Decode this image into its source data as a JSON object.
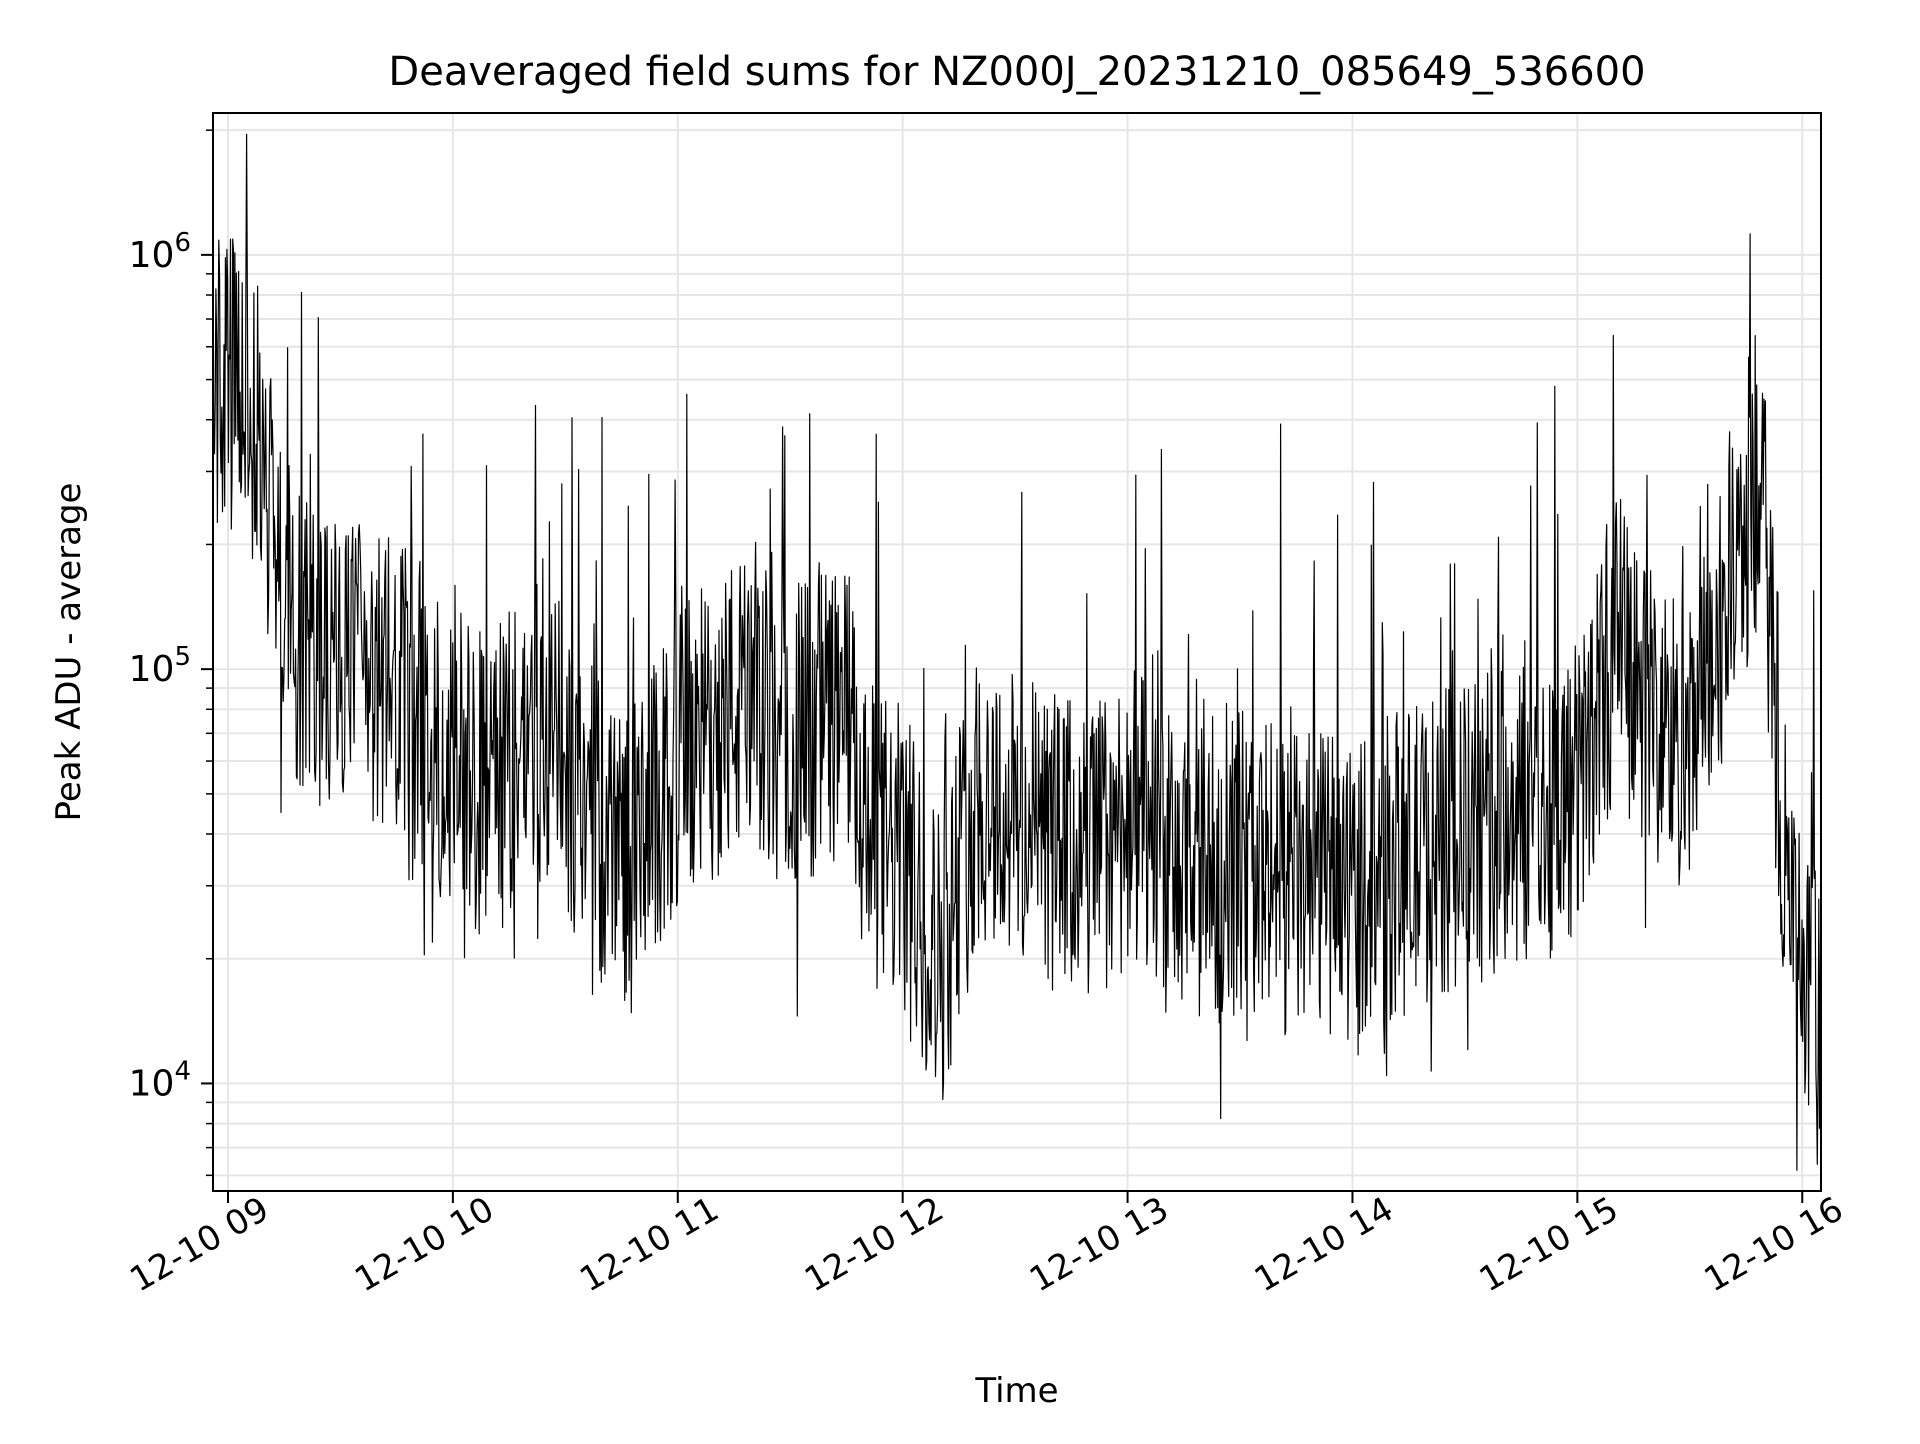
{
  "chart_data": {
    "type": "line",
    "title": "Deaveraged field sums for NZ000J_20231210_085649_536600",
    "xlabel": "Time",
    "ylabel": "Peak ADU - average",
    "yscale": "log",
    "ylim": [
      5500,
      2200000
    ],
    "xlim": [
      "2023-12-10 08:56",
      "2023-12-10 16:05"
    ],
    "grid": true,
    "line_color": "#000000",
    "grid_color": "#e6e6e6",
    "x_ticks": [
      {
        "t": "2023-12-10 09:00",
        "label": "12-10 09"
      },
      {
        "t": "2023-12-10 10:00",
        "label": "12-10 10"
      },
      {
        "t": "2023-12-10 11:00",
        "label": "12-10 11"
      },
      {
        "t": "2023-12-10 12:00",
        "label": "12-10 12"
      },
      {
        "t": "2023-12-10 13:00",
        "label": "12-10 13"
      },
      {
        "t": "2023-12-10 14:00",
        "label": "12-10 14"
      },
      {
        "t": "2023-12-10 15:00",
        "label": "12-10 15"
      },
      {
        "t": "2023-12-10 16:00",
        "label": "12-10 16"
      }
    ],
    "y_ticks": [
      {
        "value": 10000,
        "base": "10",
        "exp": "4"
      },
      {
        "value": 100000,
        "base": "10",
        "exp": "5"
      },
      {
        "value": 1000000,
        "base": "10",
        "exp": "6"
      }
    ],
    "series": [
      {
        "t": [
          "2023-12-10 08:56",
          "2023-12-10 09:05",
          "2023-12-10 09:10",
          "2023-12-10 09:15",
          "2023-12-10 09:20",
          "2023-12-10 09:30",
          "2023-12-10 09:40",
          "2023-12-10 09:50",
          "2023-12-10 10:00",
          "2023-12-10 10:10",
          "2023-12-10 10:20",
          "2023-12-10 10:30",
          "2023-12-10 10:40",
          "2023-12-10 10:50",
          "2023-12-10 11:00",
          "2023-12-10 11:15",
          "2023-12-10 11:30",
          "2023-12-10 11:45",
          "2023-12-10 11:50",
          "2023-12-10 12:00",
          "2023-12-10 12:10",
          "2023-12-10 12:20",
          "2023-12-10 12:35",
          "2023-12-10 12:50",
          "2023-12-10 13:00",
          "2023-12-10 13:15",
          "2023-12-10 13:30",
          "2023-12-10 13:45",
          "2023-12-10 14:00",
          "2023-12-10 14:15",
          "2023-12-10 14:30",
          "2023-12-10 14:45",
          "2023-12-10 15:00",
          "2023-12-10 15:10",
          "2023-12-10 15:20",
          "2023-12-10 15:30",
          "2023-12-10 15:40",
          "2023-12-10 15:45",
          "2023-12-10 15:50",
          "2023-12-10 15:55",
          "2023-12-10 16:00",
          "2023-12-10 16:05"
        ],
        "values": [
          500000,
          450000,
          300000,
          150000,
          120000,
          100000,
          90000,
          80000,
          60000,
          50000,
          70000,
          60000,
          40000,
          35000,
          60000,
          80000,
          70000,
          80000,
          40000,
          35000,
          20000,
          50000,
          40000,
          35000,
          45000,
          30000,
          35000,
          30000,
          30000,
          35000,
          40000,
          45000,
          50000,
          120000,
          80000,
          60000,
          150000,
          250000,
          200000,
          40000,
          15000,
          15000
        ]
      }
    ]
  }
}
